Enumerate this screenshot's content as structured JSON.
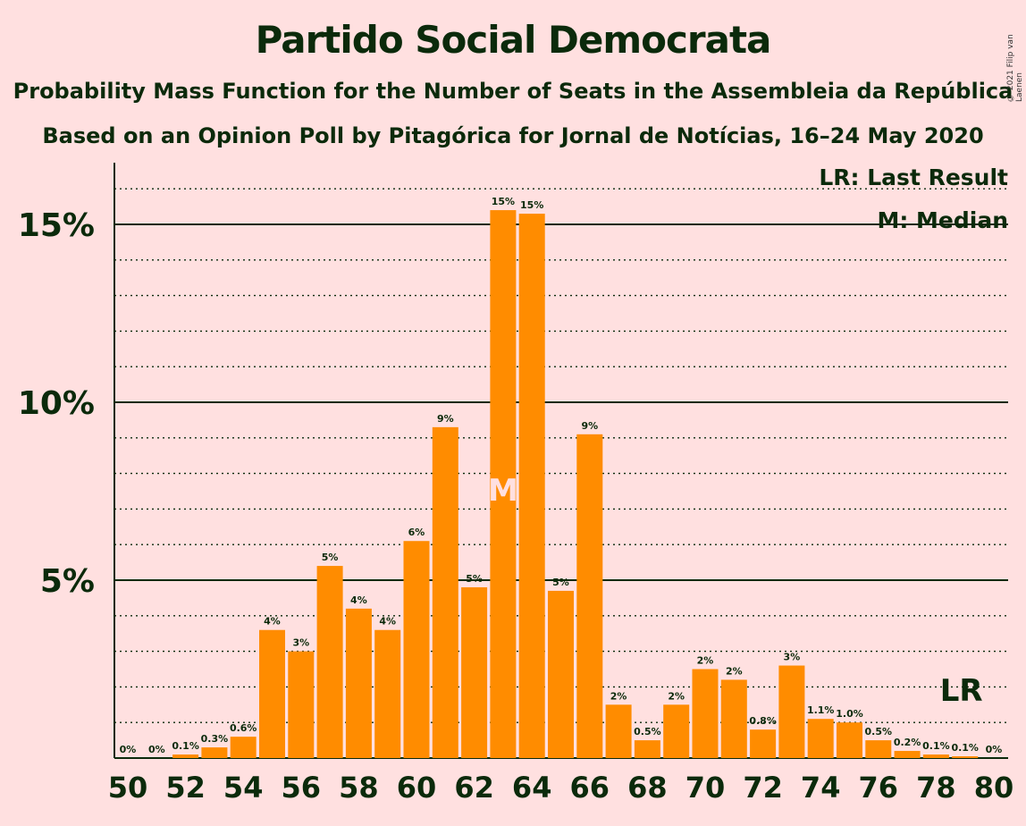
{
  "title": "Partido Social Democrata",
  "subtitle1": "Probability Mass Function for the Number of Seats in the Assembleia da República",
  "subtitle2": "Based on an Opinion Poll by Pitagórica for Jornal de Notícias, 16–24 May 2020",
  "copyright": "© 2021 Filip van Laenen",
  "legend": {
    "lr": "LR: Last Result",
    "m": "M: Median"
  },
  "markers": {
    "median_label": "M",
    "median_seat": 63,
    "last_result_label": "LR",
    "last_result_seat": 79
  },
  "colors": {
    "bar": "#ff8c00",
    "background": "#ffe0e0",
    "text": "#0b2a0b",
    "median_text": "#ffe0e0"
  },
  "chart_data": {
    "type": "bar",
    "xlabel": "",
    "ylabel": "",
    "ylim": [
      0,
      16.8
    ],
    "y_ticks": [
      5,
      10,
      15
    ],
    "y_tick_labels": [
      "5%",
      "10%",
      "15%"
    ],
    "x_tick_labels": [
      "50",
      "52",
      "54",
      "56",
      "58",
      "60",
      "62",
      "64",
      "66",
      "68",
      "70",
      "72",
      "74",
      "76",
      "78",
      "80"
    ],
    "grid": "dotted every 1%, solid at 5%, 10%, 15%",
    "legend_position": "top-right",
    "categories": [
      50,
      51,
      52,
      53,
      54,
      55,
      56,
      57,
      58,
      59,
      60,
      61,
      62,
      63,
      64,
      65,
      66,
      67,
      68,
      69,
      70,
      71,
      72,
      73,
      74,
      75,
      76,
      77,
      78,
      79,
      80
    ],
    "values": [
      0,
      0,
      0.1,
      0.3,
      0.6,
      3.6,
      3.0,
      5.4,
      4.2,
      3.6,
      6.1,
      9.3,
      4.8,
      15.4,
      15.3,
      4.7,
      9.1,
      1.5,
      0.5,
      1.5,
      2.5,
      2.2,
      0.8,
      2.6,
      1.1,
      1.0,
      0.5,
      0.2,
      0.1,
      0.05,
      0
    ],
    "data_labels": [
      "0%",
      "0%",
      "0.1%",
      "0.3%",
      "0.6%",
      "4%",
      "3%",
      "5%",
      "4%",
      "4%",
      "6%",
      "9%",
      "5%",
      "15%",
      "15%",
      "5%",
      "9%",
      "2%",
      "0.5%",
      "2%",
      "2%",
      "2%",
      "0.8%",
      "3%",
      "1.1%",
      "1.0%",
      "0.5%",
      "0.2%",
      "0.1%",
      "0.1%",
      "0%"
    ]
  }
}
